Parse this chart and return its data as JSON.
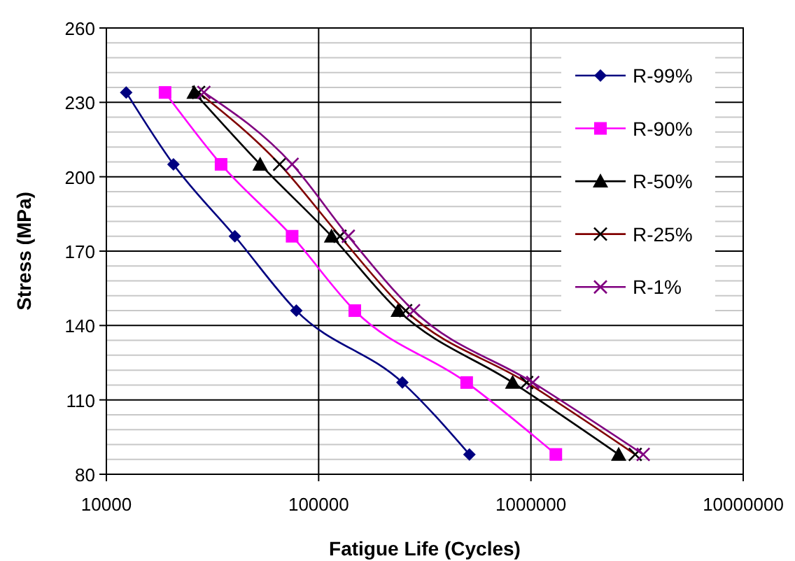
{
  "chart_data": {
    "type": "line",
    "xlabel": "Fatigue Life (Cycles)",
    "ylabel": "Stress (MPa)",
    "log": "x",
    "grid": true,
    "legend": "right",
    "xlim": [
      10000,
      10000000
    ],
    "xticks": [
      10000,
      100000,
      1000000,
      10000000
    ],
    "ylim": [
      80,
      260
    ],
    "yticks": [
      80,
      110,
      140,
      170,
      200,
      230,
      260
    ],
    "series": [
      {
        "name": "R-99%",
        "color": "#000080",
        "marker": "diamond",
        "x": [
          12400,
          20700,
          40300,
          78500,
          248000,
          513000
        ],
        "values": [
          234,
          205,
          176,
          146,
          117,
          88
        ]
      },
      {
        "name": "R-90%",
        "color": "#ff00ff",
        "marker": "square",
        "x": [
          18900,
          34700,
          75000,
          148000,
          498000,
          1310000
        ],
        "values": [
          234,
          205,
          176,
          146,
          117,
          88
        ]
      },
      {
        "name": "R-50%",
        "color": "#000000",
        "marker": "triangle",
        "x": [
          25900,
          53000,
          115000,
          237000,
          820000,
          2590000
        ],
        "values": [
          234,
          205,
          176,
          146,
          117,
          88
        ]
      },
      {
        "name": "R-25%",
        "color": "#800000",
        "marker": "cross",
        "x": [
          27200,
          65500,
          126000,
          257000,
          955000,
          3100000
        ],
        "values": [
          234,
          205,
          176,
          146,
          117,
          88
        ]
      },
      {
        "name": "R-1%",
        "color": "#800080",
        "marker": "cross",
        "x": [
          28800,
          75000,
          138000,
          280000,
          1020000,
          3380000
        ],
        "values": [
          234,
          205,
          176,
          146,
          117,
          88
        ]
      }
    ]
  }
}
